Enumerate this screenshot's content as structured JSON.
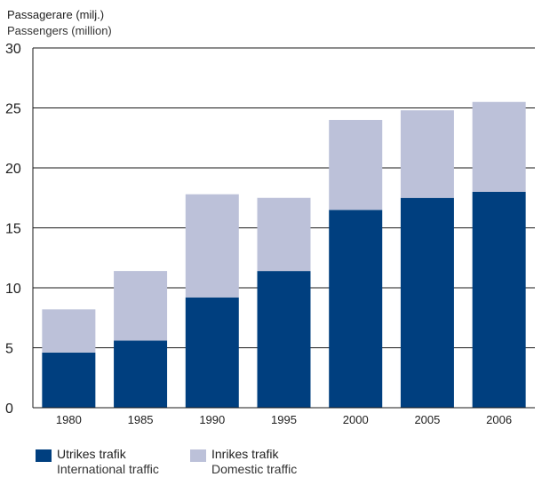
{
  "chart_data": {
    "type": "bar",
    "stacked": true,
    "ylabel_sv": "Passagerare (milj.)",
    "ylabel_en": "Passengers (million)",
    "categories": [
      "1980",
      "1985",
      "1990",
      "1995",
      "2000",
      "2005",
      "2006"
    ],
    "series": [
      {
        "name_sv": "Utrikes trafik",
        "name_en": "International traffic",
        "color": "#003f7f",
        "values": [
          4.6,
          5.6,
          9.2,
          11.4,
          16.5,
          17.5,
          18.0
        ]
      },
      {
        "name_sv": "Inrikes trafik",
        "name_en": "Domestic traffic",
        "color": "#bcc1d9",
        "values": [
          3.6,
          5.8,
          8.6,
          6.1,
          7.5,
          7.3,
          7.5
        ]
      }
    ],
    "ylim": [
      0,
      30
    ],
    "yticks": [
      "0",
      "5",
      "10",
      "15",
      "20",
      "25",
      "30"
    ],
    "grid": true,
    "legend_position": "bottom-left"
  }
}
